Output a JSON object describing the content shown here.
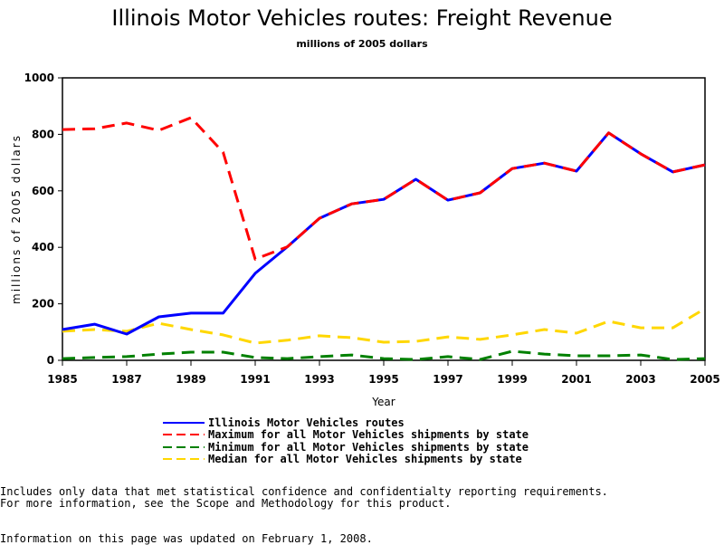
{
  "chart_data": {
    "type": "line",
    "title": "Illinois Motor Vehicles routes: Freight Revenue",
    "subtitle": "millions of 2005 dollars",
    "xlabel": "Year",
    "ylabel": "millions of 2005 dollars",
    "xlim": [
      1985,
      2005
    ],
    "ylim": [
      0,
      1000
    ],
    "x_ticks": [
      "1985",
      "1987",
      "1989",
      "1991",
      "1993",
      "1995",
      "1997",
      "1999",
      "2001",
      "2003",
      "2005"
    ],
    "y_ticks": [
      "0",
      "200",
      "400",
      "600",
      "800",
      "1000"
    ],
    "x": [
      1985,
      1986,
      1987,
      1988,
      1989,
      1990,
      1991,
      1992,
      1993,
      1994,
      1995,
      1996,
      1997,
      1998,
      1999,
      2000,
      2001,
      2002,
      2003,
      2004,
      2005
    ],
    "series": [
      {
        "name": "Illinois Motor Vehicles routes",
        "color": "#0000ff",
        "style": "solid",
        "values": [
          109,
          128,
          93,
          154,
          167,
          167,
          308,
          402,
          503,
          554,
          570,
          641,
          567,
          593,
          679,
          698,
          670,
          805,
          731,
          667,
          692
        ]
      },
      {
        "name": "Maximum for all Motor Vehicles shipments by state",
        "color": "#ff0000",
        "style": "dashed",
        "values": [
          817,
          820,
          840,
          814,
          859,
          737,
          358,
          402,
          503,
          554,
          570,
          641,
          567,
          593,
          679,
          698,
          670,
          805,
          731,
          667,
          692
        ]
      },
      {
        "name": "Minimum for all Motor Vehicles shipments by state",
        "color": "#008000",
        "style": "dashed",
        "values": [
          6,
          10,
          13,
          22,
          29,
          29,
          10,
          6,
          13,
          19,
          6,
          3,
          13,
          3,
          32,
          22,
          16,
          16,
          19,
          3,
          6
        ]
      },
      {
        "name": "Median for all Motor Vehicles shipments by state",
        "color": "#ffd700",
        "style": "dashed",
        "values": [
          103,
          109,
          103,
          131,
          109,
          90,
          61,
          71,
          87,
          80,
          64,
          67,
          83,
          74,
          90,
          109,
          96,
          138,
          115,
          115,
          183
        ]
      }
    ],
    "legend_placement": "bottom"
  },
  "notes": {
    "line1": "Includes only data that met statistical confidence and confidentialty reporting requirements.",
    "line2": "For more information, see the Scope and Methodology for this product.",
    "updated": "Information on this page was updated on February 1, 2008."
  }
}
